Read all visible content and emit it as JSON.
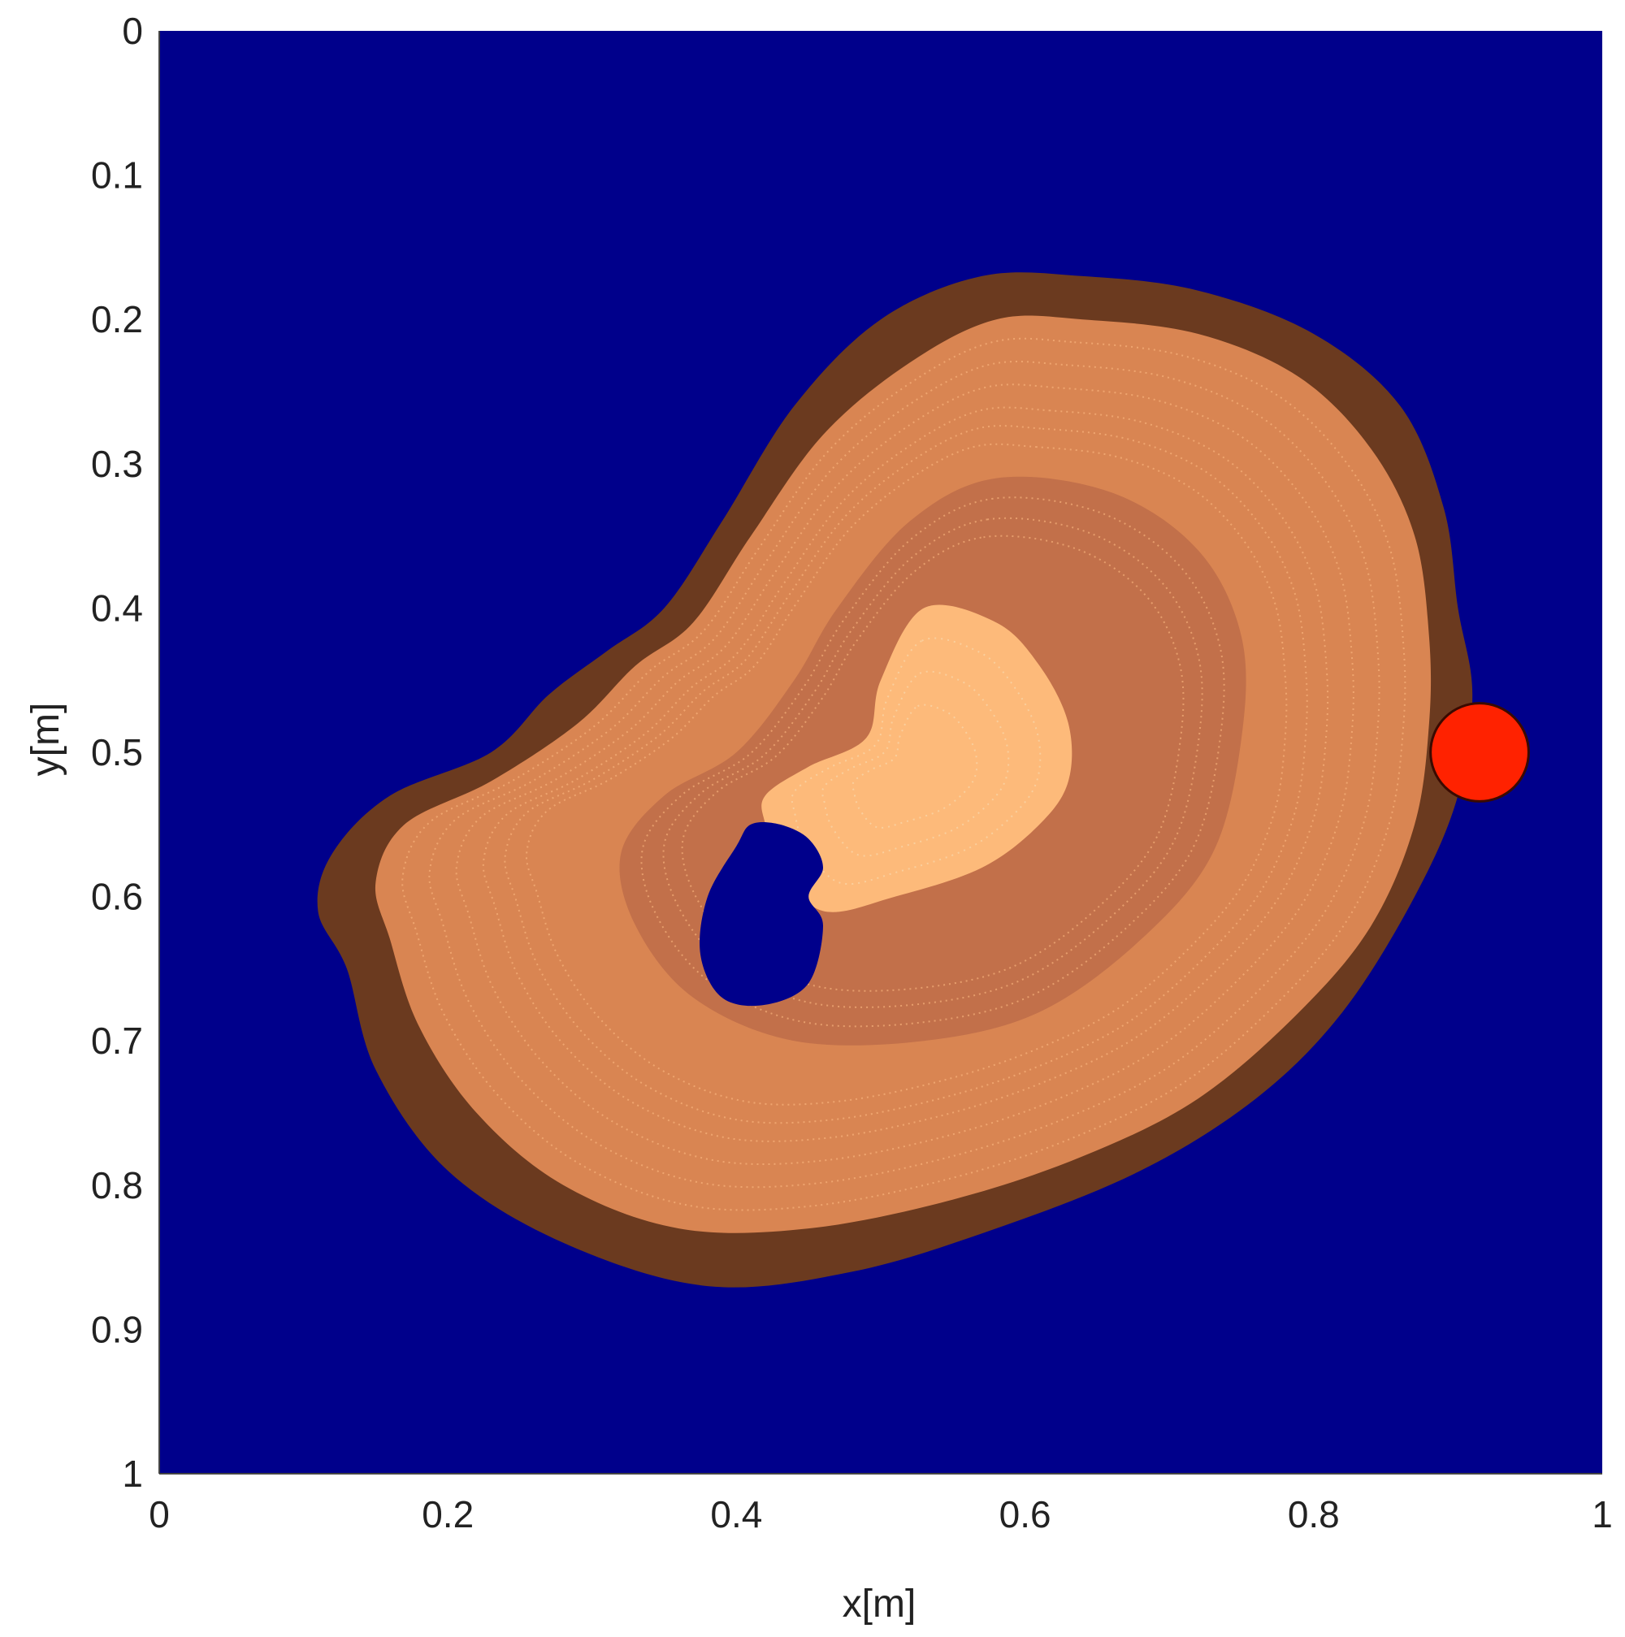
{
  "chart_data": {
    "type": "heatmap",
    "xlabel": "x[m]",
    "ylabel": "y[m]",
    "xlim": [
      0,
      1
    ],
    "ylim": [
      0,
      1
    ],
    "y_axis_direction": "top-to-bottom",
    "x_ticks": [
      "0",
      "0.2",
      "0.4",
      "0.6",
      "0.8",
      "1"
    ],
    "y_ticks": [
      "0",
      "0.1",
      "0.2",
      "0.3",
      "0.4",
      "0.5",
      "0.6",
      "0.7",
      "0.8",
      "0.9",
      "1"
    ],
    "grid": false,
    "legend": "none",
    "colors": {
      "background": "#00008B",
      "outer_band": "#6B3A1F",
      "main_region": "#D98552",
      "mid_band": "#C2704A",
      "inner_core": "#FDBA7A",
      "ring_lines": "#F5B07A",
      "marker": "#FF2200"
    },
    "regions": [
      {
        "name": "outer-band",
        "outline": [
          [
            0.64,
            0.17
          ],
          [
            0.72,
            0.18
          ],
          [
            0.8,
            0.21
          ],
          [
            0.86,
            0.26
          ],
          [
            0.89,
            0.33
          ],
          [
            0.9,
            0.4
          ],
          [
            0.91,
            0.46
          ],
          [
            0.9,
            0.53
          ],
          [
            0.87,
            0.6
          ],
          [
            0.82,
            0.68
          ],
          [
            0.76,
            0.74
          ],
          [
            0.68,
            0.79
          ],
          [
            0.58,
            0.83
          ],
          [
            0.48,
            0.86
          ],
          [
            0.38,
            0.87
          ],
          [
            0.28,
            0.84
          ],
          [
            0.2,
            0.79
          ],
          [
            0.15,
            0.72
          ],
          [
            0.13,
            0.65
          ],
          [
            0.11,
            0.61
          ],
          [
            0.12,
            0.57
          ],
          [
            0.16,
            0.53
          ],
          [
            0.23,
            0.5
          ],
          [
            0.27,
            0.46
          ],
          [
            0.31,
            0.43
          ],
          [
            0.35,
            0.4
          ],
          [
            0.39,
            0.34
          ],
          [
            0.44,
            0.26
          ],
          [
            0.5,
            0.2
          ],
          [
            0.57,
            0.17
          ]
        ]
      },
      {
        "name": "main-region",
        "outline": [
          [
            0.64,
            0.2
          ],
          [
            0.72,
            0.21
          ],
          [
            0.79,
            0.24
          ],
          [
            0.84,
            0.29
          ],
          [
            0.87,
            0.35
          ],
          [
            0.88,
            0.42
          ],
          [
            0.88,
            0.48
          ],
          [
            0.87,
            0.55
          ],
          [
            0.84,
            0.62
          ],
          [
            0.79,
            0.68
          ],
          [
            0.72,
            0.74
          ],
          [
            0.64,
            0.78
          ],
          [
            0.55,
            0.81
          ],
          [
            0.45,
            0.83
          ],
          [
            0.36,
            0.83
          ],
          [
            0.28,
            0.8
          ],
          [
            0.22,
            0.75
          ],
          [
            0.18,
            0.69
          ],
          [
            0.16,
            0.63
          ],
          [
            0.15,
            0.59
          ],
          [
            0.17,
            0.55
          ],
          [
            0.23,
            0.52
          ],
          [
            0.29,
            0.48
          ],
          [
            0.33,
            0.44
          ],
          [
            0.37,
            0.41
          ],
          [
            0.41,
            0.35
          ],
          [
            0.46,
            0.28
          ],
          [
            0.52,
            0.23
          ],
          [
            0.58,
            0.2
          ]
        ]
      },
      {
        "name": "mid-band",
        "outline": [
          [
            0.58,
            0.31
          ],
          [
            0.66,
            0.32
          ],
          [
            0.72,
            0.36
          ],
          [
            0.75,
            0.42
          ],
          [
            0.75,
            0.49
          ],
          [
            0.73,
            0.57
          ],
          [
            0.68,
            0.63
          ],
          [
            0.61,
            0.68
          ],
          [
            0.53,
            0.7
          ],
          [
            0.44,
            0.7
          ],
          [
            0.37,
            0.67
          ],
          [
            0.33,
            0.62
          ],
          [
            0.32,
            0.57
          ],
          [
            0.35,
            0.53
          ],
          [
            0.4,
            0.5
          ],
          [
            0.44,
            0.45
          ],
          [
            0.47,
            0.4
          ],
          [
            0.52,
            0.34
          ]
        ]
      },
      {
        "name": "inner-core",
        "outline": [
          [
            0.53,
            0.4
          ],
          [
            0.58,
            0.41
          ],
          [
            0.61,
            0.44
          ],
          [
            0.63,
            0.48
          ],
          [
            0.63,
            0.52
          ],
          [
            0.61,
            0.55
          ],
          [
            0.57,
            0.58
          ],
          [
            0.51,
            0.6
          ],
          [
            0.46,
            0.61
          ],
          [
            0.43,
            0.58
          ],
          [
            0.42,
            0.55
          ],
          [
            0.42,
            0.53
          ],
          [
            0.45,
            0.51
          ],
          [
            0.49,
            0.49
          ],
          [
            0.5,
            0.45
          ]
        ]
      },
      {
        "name": "hole",
        "outline": [
          [
            0.41,
            0.55
          ],
          [
            0.43,
            0.55
          ],
          [
            0.45,
            0.56
          ],
          [
            0.46,
            0.58
          ],
          [
            0.45,
            0.6
          ],
          [
            0.46,
            0.62
          ],
          [
            0.45,
            0.66
          ],
          [
            0.42,
            0.675
          ],
          [
            0.39,
            0.67
          ],
          [
            0.375,
            0.64
          ],
          [
            0.38,
            0.6
          ],
          [
            0.4,
            0.565
          ]
        ]
      }
    ],
    "marker": {
      "x": 0.915,
      "y": 0.5,
      "r": 0.034
    }
  }
}
